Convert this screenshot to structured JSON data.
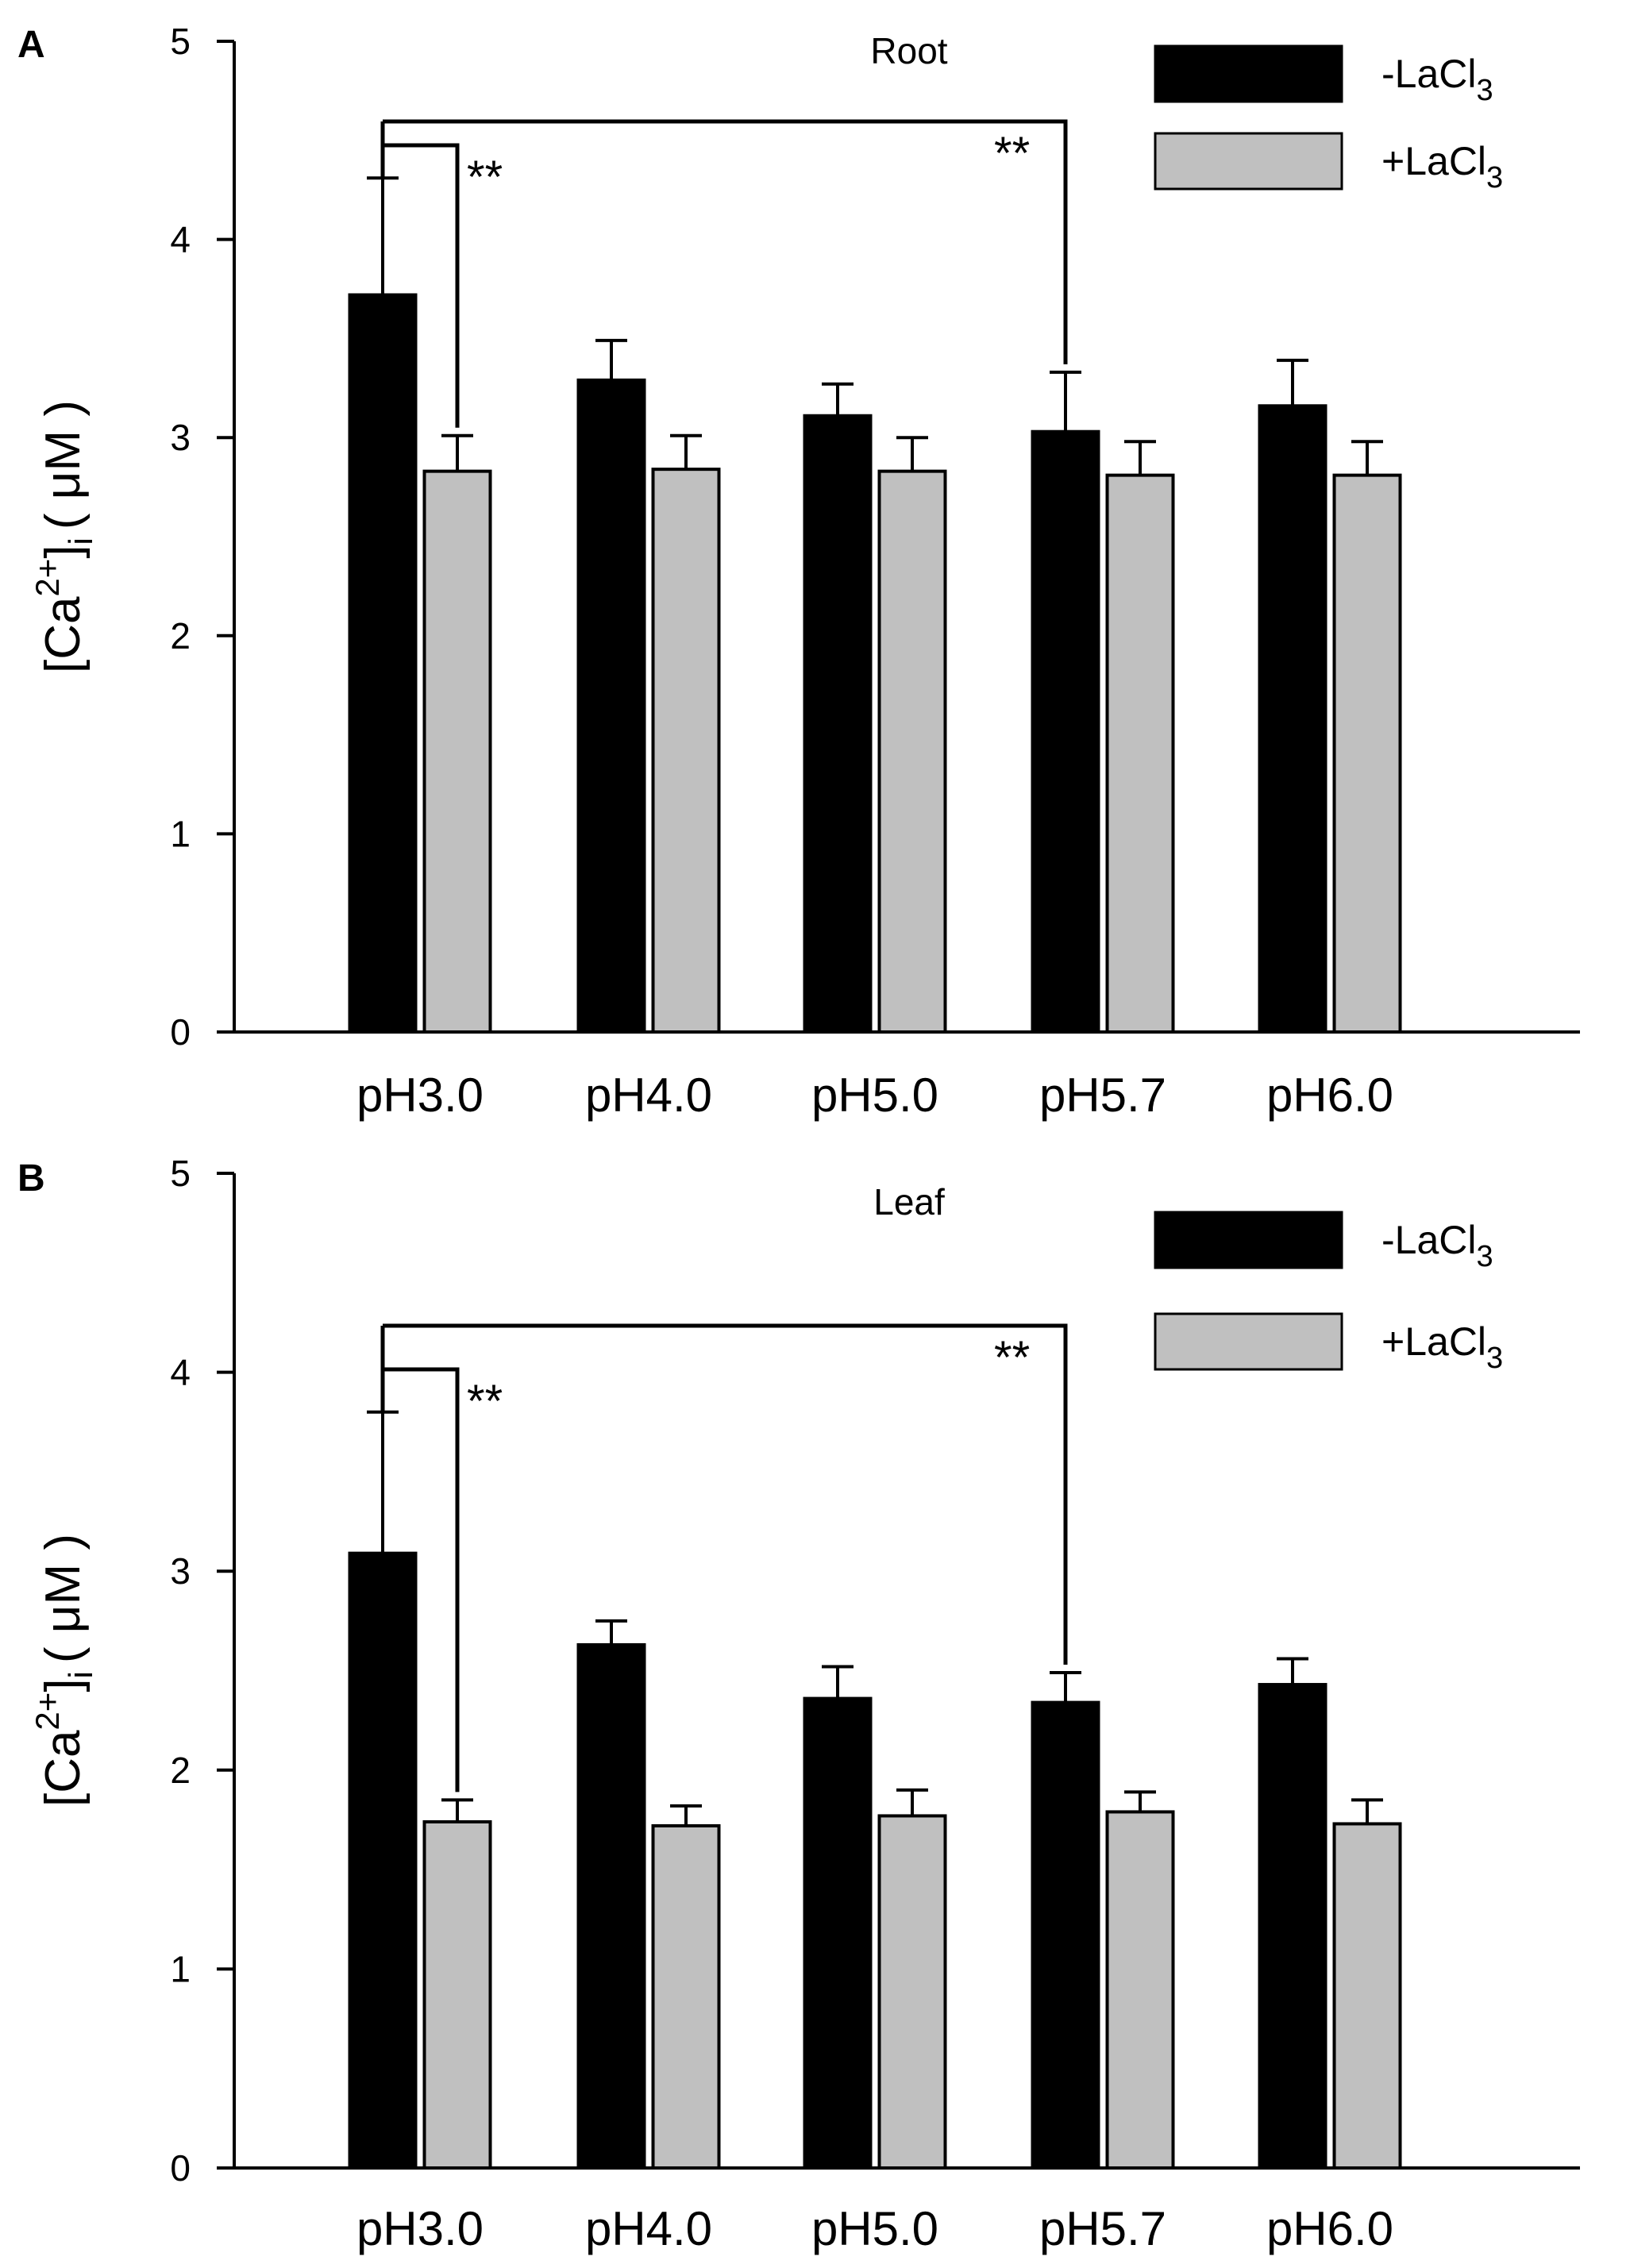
{
  "chart_data": [
    {
      "type": "bar",
      "panel_label": "A",
      "title": "Root",
      "xlabel": "",
      "ylabel": {
        "main": "[Ca",
        "sup": "2+",
        "close": "]",
        "sub": "i",
        "unit": "( μM )"
      },
      "ylim": [
        0,
        5
      ],
      "yticks": [
        0,
        1,
        2,
        3,
        4,
        5
      ],
      "grid": false,
      "legend_position": "top-right",
      "categories": [
        "pH3.0",
        "pH4.0",
        "pH5.0",
        "pH5.7",
        "pH6.0"
      ],
      "series": [
        {
          "name": "-LaCl",
          "sub": "3",
          "values": [
            3.72,
            3.29,
            3.11,
            3.03,
            3.16
          ],
          "errors": [
            0.59,
            0.2,
            0.16,
            0.3,
            0.23
          ]
        },
        {
          "name": "+LaCl",
          "sub": "3",
          "values": [
            2.83,
            2.84,
            2.83,
            2.81,
            2.81
          ],
          "errors": [
            0.18,
            0.17,
            0.17,
            0.17,
            0.17
          ]
        }
      ],
      "annotations": [
        {
          "text": "**",
          "from_category": 0,
          "to_series": 1,
          "to_category": 0
        },
        {
          "text": "**",
          "from_category": 0,
          "to_series": 0,
          "to_category": 3
        }
      ]
    },
    {
      "type": "bar",
      "panel_label": "B",
      "title": "Leaf",
      "xlabel": "",
      "ylabel": {
        "main": "[Ca",
        "sup": "2+",
        "close": "]",
        "sub": "i",
        "unit": "( μM )"
      },
      "ylim": [
        0,
        5
      ],
      "yticks": [
        0,
        1,
        2,
        3,
        4,
        5
      ],
      "grid": false,
      "legend_position": "top-right",
      "categories": [
        "pH3.0",
        "pH4.0",
        "pH5.0",
        "pH5.7",
        "pH6.0"
      ],
      "series": [
        {
          "name": "-LaCl",
          "sub": "3",
          "values": [
            3.09,
            2.63,
            2.36,
            2.34,
            2.43
          ],
          "errors": [
            0.71,
            0.12,
            0.16,
            0.15,
            0.13
          ]
        },
        {
          "name": "+LaCl",
          "sub": "3",
          "values": [
            1.74,
            1.72,
            1.77,
            1.79,
            1.73
          ],
          "errors": [
            0.11,
            0.1,
            0.13,
            0.1,
            0.12
          ]
        }
      ],
      "annotations": [
        {
          "text": "**",
          "from_category": 0,
          "to_series": 1,
          "to_category": 0
        },
        {
          "text": "**",
          "from_category": 0,
          "to_series": 0,
          "to_category": 3
        }
      ]
    }
  ],
  "colors": {
    "series_0": "#000000",
    "series_1": "#c0c0c0",
    "axis": "#000000"
  }
}
